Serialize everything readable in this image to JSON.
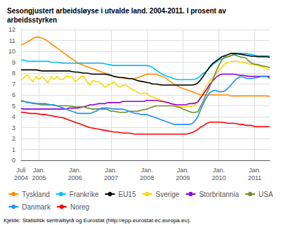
{
  "chart_data": {
    "type": "line",
    "title": "Sesongjustert arbeidsløyse i utvalde land. 2004-2011. I prosent av\narbeidsstyrken",
    "annotations": [
      "Kjelde: Statistisk sentralbyrå og Eurostat (http://epp.eurostat.ec.europa.eu)."
    ],
    "categories": [
      "Juli\n2004",
      null,
      null,
      null,
      null,
      null,
      "Jan.\n2005",
      null,
      null,
      null,
      null,
      null,
      null,
      null,
      null,
      null,
      null,
      null,
      "Jan.\n2006",
      null,
      null,
      null,
      null,
      null,
      null,
      null,
      null,
      null,
      null,
      null,
      "Jan.\n2007",
      null,
      null,
      null,
      null,
      null,
      null,
      null,
      null,
      null,
      null,
      null,
      "Jan.\n2008",
      null,
      null,
      null,
      null,
      null,
      null,
      null,
      null,
      null,
      null,
      null,
      "Jan.\n2009",
      null,
      null,
      null,
      null,
      null,
      null,
      null,
      null,
      null,
      null,
      null,
      "Jan.\n2010",
      null,
      null,
      null,
      null,
      null,
      null,
      null,
      null,
      null,
      null,
      null,
      "Jan.\n2011",
      null,
      null,
      null,
      null,
      null
    ],
    "ylim": [
      0,
      12
    ],
    "yticks": [
      0,
      1,
      2,
      3,
      4,
      5,
      6,
      7,
      8,
      9,
      10,
      11,
      12
    ],
    "grid": true,
    "legend": "bottom",
    "series": [
      {
        "name": "Tyskland",
        "color": "#FF8C00",
        "values": [
          10.6,
          10.7,
          10.85,
          11.0,
          11.2,
          11.3,
          11.3,
          11.2,
          11.1,
          10.9,
          10.7,
          10.5,
          10.3,
          10.1,
          9.9,
          9.7,
          9.5,
          9.3,
          9.1,
          8.9,
          8.8,
          8.7,
          8.6,
          8.5,
          8.4,
          8.3,
          8.2,
          8.1,
          8.0,
          7.9,
          7.8,
          7.7,
          7.65,
          7.6,
          7.55,
          7.5,
          7.5,
          7.5,
          7.5,
          7.6,
          7.7,
          7.8,
          7.9,
          7.9,
          7.9,
          7.9,
          7.8,
          7.7,
          7.6,
          7.4,
          7.2,
          7.0,
          6.85,
          6.7,
          6.6,
          6.5,
          6.4,
          6.3,
          6.2,
          6.1,
          6.0,
          6.0,
          6.0,
          6.0,
          6.0,
          6.0,
          6.0,
          6.0,
          6.0,
          6.0,
          5.9,
          5.9,
          5.9,
          5.9,
          5.9,
          5.9,
          5.9,
          5.9,
          5.9,
          5.9,
          5.9,
          5.9,
          5.9,
          5.85
        ]
      },
      {
        "name": "Frankrike",
        "color": "#00BFFF",
        "values": [
          9.2,
          9.2,
          9.1,
          9.1,
          9.1,
          9.1,
          9.1,
          9.1,
          9.1,
          9.1,
          9.0,
          9.0,
          9.0,
          8.95,
          8.9,
          8.9,
          8.9,
          8.9,
          8.9,
          8.9,
          8.9,
          8.9,
          8.9,
          8.9,
          8.9,
          8.9,
          8.9,
          8.9,
          8.85,
          8.8,
          8.75,
          8.7,
          8.7,
          8.7,
          8.7,
          8.7,
          8.7,
          8.7,
          8.7,
          8.7,
          8.7,
          8.7,
          8.7,
          8.65,
          8.5,
          8.3,
          8.1,
          7.9,
          7.8,
          7.7,
          7.6,
          7.5,
          7.4,
          7.4,
          7.4,
          7.4,
          7.4,
          7.4,
          7.45,
          7.55,
          7.8,
          8.0,
          8.2,
          8.5,
          8.8,
          9.0,
          9.2,
          9.3,
          9.4,
          9.5,
          9.6,
          9.7,
          9.75,
          9.8,
          9.8,
          9.8,
          9.75,
          9.7,
          9.65,
          9.6,
          9.6,
          9.6,
          9.6,
          9.55
        ]
      },
      {
        "name": "EU15",
        "color": "#000000",
        "values": [
          8.3,
          8.3,
          8.3,
          8.3,
          8.3,
          8.3,
          8.25,
          8.2,
          8.2,
          8.2,
          8.2,
          8.2,
          8.2,
          8.2,
          8.2,
          8.2,
          8.2,
          8.15,
          8.1,
          8.1,
          8.05,
          8.0,
          8.0,
          7.95,
          7.9,
          7.9,
          7.9,
          7.9,
          7.9,
          7.85,
          7.8,
          7.7,
          7.65,
          7.6,
          7.6,
          7.55,
          7.5,
          7.5,
          7.4,
          7.3,
          7.25,
          7.2,
          7.15,
          7.1,
          7.0,
          7.0,
          6.95,
          6.9,
          6.9,
          6.9,
          6.9,
          6.9,
          6.9,
          6.9,
          6.9,
          6.9,
          6.9,
          6.9,
          6.95,
          7.1,
          7.4,
          7.8,
          8.2,
          8.6,
          8.9,
          9.1,
          9.3,
          9.5,
          9.6,
          9.7,
          9.8,
          9.8,
          9.8,
          9.75,
          9.7,
          9.65,
          9.6,
          9.55,
          9.55,
          9.5,
          9.5,
          9.5,
          9.5,
          9.45
        ]
      },
      {
        "name": "Sverige",
        "color": "#FFD700",
        "values": [
          7.3,
          7.6,
          7.85,
          7.5,
          7.2,
          7.7,
          7.4,
          7.7,
          7.4,
          7.1,
          7.7,
          7.4,
          7.7,
          7.4,
          7.4,
          7.7,
          7.7,
          7.65,
          7.2,
          7.4,
          7.7,
          7.7,
          7.2,
          6.9,
          7.35,
          7.2,
          7.2,
          7.0,
          6.7,
          6.9,
          7.0,
          7.2,
          6.9,
          6.7,
          6.9,
          6.9,
          6.7,
          6.5,
          6.4,
          6.2,
          6.1,
          6.2,
          6.1,
          5.9,
          5.8,
          5.7,
          5.6,
          5.5,
          5.4,
          5.3,
          5.2,
          5.1,
          5.0,
          4.9,
          4.9,
          4.9,
          4.9,
          4.95,
          5.1,
          5.4,
          5.9,
          6.4,
          6.9,
          7.3,
          7.6,
          7.9,
          8.2,
          8.55,
          8.85,
          9.0,
          9.05,
          9.1,
          9.1,
          9.0,
          9.0,
          8.9,
          8.85,
          8.8,
          8.8,
          8.7,
          8.6,
          8.55,
          8.4,
          8.3
        ]
      },
      {
        "name": "Storbritannia",
        "color": "#9400D3",
        "values": [
          4.75,
          4.7,
          4.7,
          4.7,
          4.7,
          4.7,
          4.7,
          4.7,
          4.7,
          4.7,
          4.7,
          4.7,
          4.7,
          4.7,
          4.7,
          4.7,
          4.8,
          4.8,
          4.8,
          4.8,
          4.85,
          4.9,
          5.0,
          5.1,
          5.1,
          5.15,
          5.2,
          5.2,
          5.2,
          5.3,
          5.3,
          5.3,
          5.3,
          5.3,
          5.4,
          5.4,
          5.4,
          5.4,
          5.4,
          5.4,
          5.4,
          5.4,
          5.5,
          5.5,
          5.5,
          5.5,
          5.45,
          5.4,
          5.35,
          5.3,
          5.2,
          5.15,
          5.1,
          5.1,
          5.1,
          5.1,
          5.2,
          5.2,
          5.25,
          5.35,
          5.75,
          6.15,
          6.55,
          7.0,
          7.3,
          7.6,
          7.8,
          7.9,
          7.9,
          7.9,
          7.9,
          7.9,
          7.85,
          7.8,
          7.8,
          7.75,
          7.7,
          7.7,
          7.7,
          7.7,
          7.7,
          7.7,
          7.7,
          7.7
        ]
      },
      {
        "name": "USA",
        "color": "#6B8E23",
        "values": [
          5.5,
          5.4,
          5.35,
          5.3,
          5.2,
          5.2,
          5.15,
          5.1,
          5.1,
          5.1,
          5.1,
          5.05,
          5.0,
          5.0,
          5.0,
          5.0,
          5.0,
          4.95,
          4.9,
          4.9,
          4.9,
          4.9,
          4.8,
          4.75,
          4.7,
          4.7,
          4.7,
          4.7,
          4.7,
          4.65,
          4.5,
          4.5,
          4.45,
          4.4,
          4.4,
          4.4,
          4.5,
          4.5,
          4.5,
          4.5,
          4.6,
          4.65,
          4.7,
          4.8,
          4.9,
          5.0,
          5.0,
          5.0,
          5.0,
          5.0,
          5.0,
          5.0,
          4.9,
          4.85,
          4.7,
          4.6,
          4.5,
          4.4,
          4.4,
          4.45,
          5.0,
          5.55,
          6.2,
          6.8,
          7.4,
          8.1,
          8.7,
          9.2,
          9.5,
          9.5,
          9.6,
          9.7,
          9.6,
          9.5,
          9.45,
          9.4,
          9.1,
          8.9,
          8.8,
          8.8,
          8.7,
          8.65,
          8.6,
          8.5
        ]
      },
      {
        "name": "Danmark",
        "color": "#1E90FF",
        "values": [
          5.4,
          5.4,
          5.3,
          5.3,
          5.25,
          5.2,
          5.2,
          5.2,
          5.2,
          5.15,
          5.1,
          5.1,
          5.0,
          4.9,
          4.8,
          4.7,
          4.6,
          4.5,
          4.4,
          4.3,
          4.3,
          4.3,
          4.3,
          4.3,
          4.4,
          4.5,
          4.7,
          4.8,
          4.8,
          4.8,
          4.75,
          4.7,
          4.7,
          4.7,
          4.7,
          4.6,
          4.5,
          4.4,
          4.3,
          4.3,
          4.2,
          4.2,
          4.2,
          4.1,
          4.0,
          3.9,
          3.8,
          3.7,
          3.6,
          3.5,
          3.4,
          3.3,
          3.3,
          3.3,
          3.3,
          3.3,
          3.3,
          3.35,
          3.6,
          4.0,
          4.7,
          5.3,
          5.8,
          6.2,
          6.4,
          6.4,
          6.3,
          6.3,
          6.35,
          6.6,
          6.9,
          7.2,
          7.5,
          7.65,
          7.65,
          7.55,
          7.5,
          7.5,
          7.55,
          7.6,
          7.7,
          7.7,
          7.7,
          7.5
        ]
      },
      {
        "name": "Noreg",
        "color": "#FF0000",
        "values": [
          4.4,
          4.4,
          4.35,
          4.3,
          4.3,
          4.3,
          4.25,
          4.2,
          4.2,
          4.15,
          4.1,
          4.05,
          4.0,
          3.95,
          3.9,
          3.8,
          3.7,
          3.6,
          3.5,
          3.4,
          3.3,
          3.2,
          3.1,
          3.0,
          2.95,
          2.9,
          2.85,
          2.8,
          2.75,
          2.7,
          2.65,
          2.6,
          2.6,
          2.55,
          2.5,
          2.5,
          2.5,
          2.45,
          2.4,
          2.4,
          2.4,
          2.4,
          2.4,
          2.4,
          2.4,
          2.4,
          2.4,
          2.4,
          2.4,
          2.4,
          2.4,
          2.4,
          2.4,
          2.4,
          2.4,
          2.4,
          2.45,
          2.55,
          2.65,
          2.85,
          3.05,
          3.2,
          3.4,
          3.5,
          3.5,
          3.5,
          3.5,
          3.5,
          3.45,
          3.4,
          3.4,
          3.4,
          3.35,
          3.3,
          3.3,
          3.2,
          3.2,
          3.2,
          3.1,
          3.1,
          3.1,
          3.1,
          3.1,
          3.1
        ]
      }
    ]
  }
}
